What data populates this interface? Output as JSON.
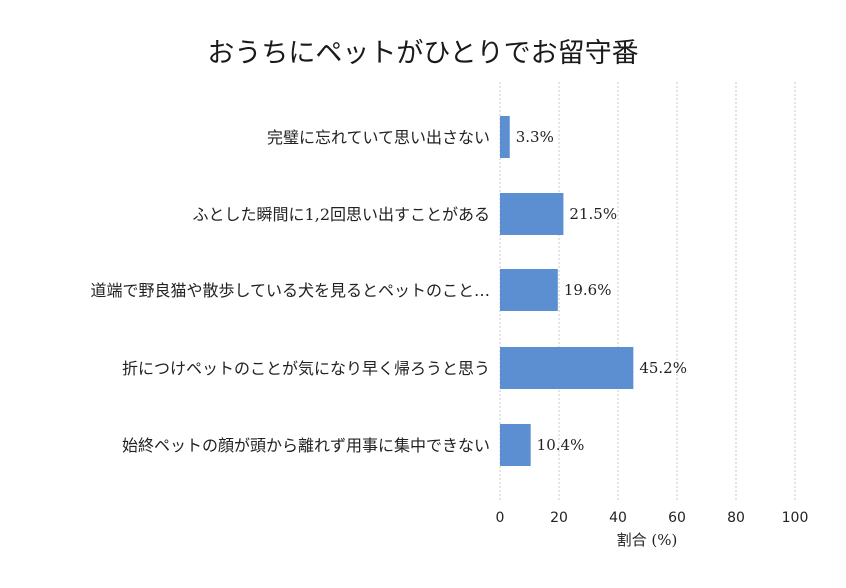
{
  "chart_data": {
    "type": "bar",
    "orientation": "horizontal",
    "title": "おうちにペットがひとりでお留守番",
    "xlabel": "割合 (%)",
    "ylabel": "",
    "xlim": [
      0,
      100
    ],
    "xticks": [
      "0",
      "20",
      "40",
      "60",
      "80",
      "100"
    ],
    "grid": true,
    "color": "#5b8fd1",
    "categories": [
      "完璧に忘れていて思い出さない",
      "ふとした瞬間に1,2回思い出すことがある",
      "道端で野良猫や散歩している犬を見るとペットのこと…",
      "折につけペットのことが気になり早く帰ろうと思う",
      "始終ペットの顔が頭から離れず用事に集中できない"
    ],
    "values": [
      3.3,
      21.5,
      19.6,
      45.2,
      10.4
    ],
    "value_labels": [
      "3.3%",
      "21.5%",
      "19.6%",
      "45.2%",
      "10.4%"
    ]
  }
}
